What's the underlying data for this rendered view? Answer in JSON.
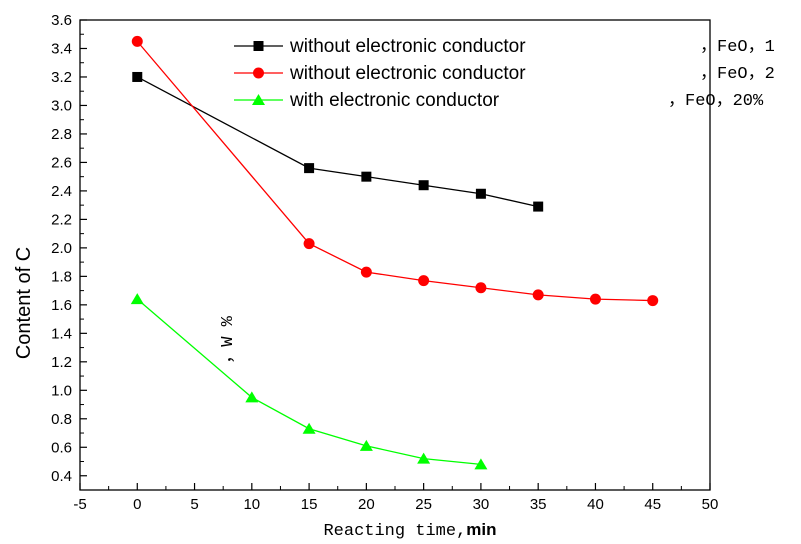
{
  "chart_data": {
    "type": "line",
    "xlabel_main": "Reacting time,",
    "xlabel_unit": "min",
    "ylabel": "Content of C",
    "unit_note": "，W %",
    "xlim": [
      -5,
      50
    ],
    "ylim": [
      0.3,
      3.6
    ],
    "x_ticks": [
      -5,
      0,
      5,
      10,
      15,
      20,
      25,
      30,
      35,
      40,
      45,
      50
    ],
    "y_ticks": [
      0.4,
      0.6,
      0.8,
      1.0,
      1.2,
      1.4,
      1.6,
      1.8,
      2.0,
      2.2,
      2.4,
      2.6,
      2.8,
      3.0,
      3.2,
      3.4,
      3.6
    ],
    "legend_position": "top-center",
    "series": [
      {
        "name": "without electronic conductor",
        "suffix": "，FeO，1",
        "color": "#000000",
        "marker": "square",
        "x": [
          0,
          15,
          20,
          25,
          30,
          35
        ],
        "y": [
          3.2,
          2.56,
          2.5,
          2.44,
          2.38,
          2.29
        ]
      },
      {
        "name": "without electronic conductor",
        "suffix": "，FeO，2",
        "color": "#ff0000",
        "marker": "circle",
        "x": [
          0,
          15,
          20,
          25,
          30,
          35,
          40,
          45
        ],
        "y": [
          3.45,
          2.03,
          1.83,
          1.77,
          1.72,
          1.67,
          1.64,
          1.63
        ]
      },
      {
        "name": "with electronic conductor",
        "suffix": "，FeO，20%",
        "color": "#00ff00",
        "marker": "triangle",
        "x": [
          0,
          10,
          15,
          20,
          25,
          30
        ],
        "y": [
          1.64,
          0.95,
          0.73,
          0.61,
          0.52,
          0.48
        ]
      }
    ]
  }
}
